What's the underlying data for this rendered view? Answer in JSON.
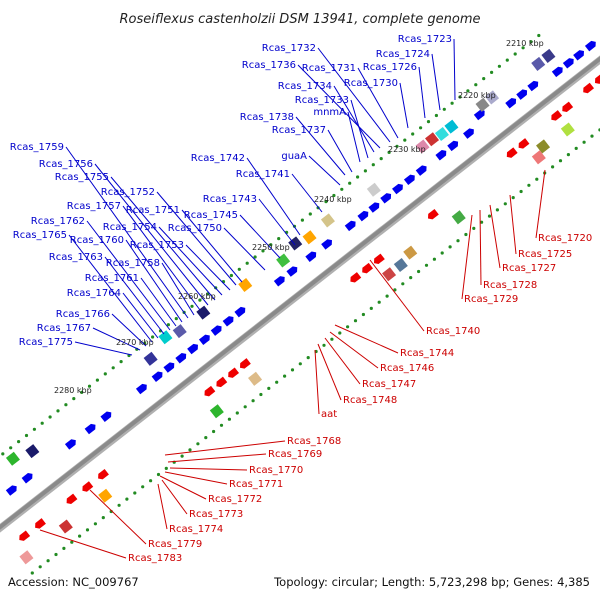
{
  "title": "Roseiflexus castenholzii DSM 13941, complete genome",
  "footer": {
    "accession": "Accession: NC_009767",
    "summary": "Topology: circular; Length: 5,723,298 bp; Genes: 4,385"
  },
  "colors": {
    "forward_label": "#0000cc",
    "reverse_label": "#cc0000",
    "forward_gene": "#0000ee",
    "reverse_gene": "#ee0000",
    "backbone": "#8a8a8a",
    "tick_dot": "#228b22"
  },
  "ticks": [
    "2210 kbp",
    "2220 kbp",
    "2230 kbp",
    "2240 kbp",
    "2250 kbp",
    "2260 kbp",
    "2270 kbp",
    "2280 kbp"
  ],
  "forward_genes": [
    "Rcas_1723",
    "Rcas_1724",
    "Rcas_1726",
    "Rcas_1730",
    "Rcas_1731",
    "Rcas_1732",
    "Rcas_1736",
    "Rcas_1734",
    "Rcas_1733",
    "mnmA",
    "Rcas_1738",
    "Rcas_1737",
    "guaA",
    "Rcas_1742",
    "Rcas_1741",
    "Rcas_1743",
    "Rcas_1745",
    "Rcas_1750",
    "Rcas_1751",
    "Rcas_1752",
    "Rcas_1753",
    "Rcas_1754",
    "Rcas_1755",
    "Rcas_1756",
    "Rcas_1757",
    "Rcas_1758",
    "Rcas_1759",
    "Rcas_1760",
    "Rcas_1761",
    "Rcas_1762",
    "Rcas_1763",
    "Rcas_1764",
    "Rcas_1765",
    "Rcas_1766",
    "Rcas_1767",
    "Rcas_1775"
  ],
  "reverse_genes": [
    "Rcas_1720",
    "Rcas_1725",
    "Rcas_1727",
    "Rcas_1728",
    "Rcas_1729",
    "Rcas_1740",
    "Rcas_1744",
    "Rcas_1746",
    "Rcas_1747",
    "Rcas_1748",
    "aat",
    "Rcas_1768",
    "Rcas_1769",
    "Rcas_1770",
    "Rcas_1771",
    "Rcas_1772",
    "Rcas_1773",
    "Rcas_1774",
    "Rcas_1779",
    "Rcas_1783"
  ]
}
